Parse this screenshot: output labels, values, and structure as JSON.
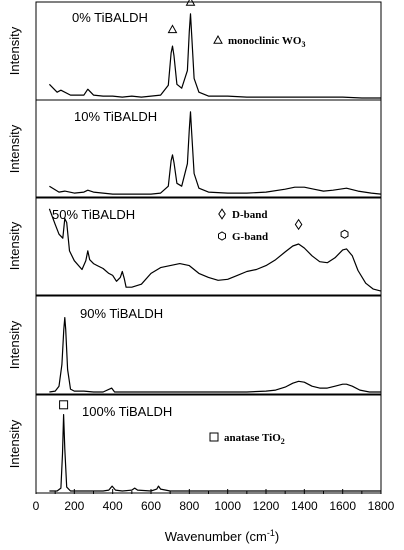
{
  "chart_data": {
    "type": "line",
    "xlabel": "Wavenumber (cm",
    "xlabel_sup": "-1",
    "xlabel_end": ")",
    "ylabel": "Intensity",
    "xlim": [
      0,
      1800
    ],
    "xticks": [
      0,
      200,
      400,
      600,
      800,
      1000,
      1200,
      1400,
      1600,
      1800
    ],
    "grid": false,
    "panels": [
      {
        "label": "0% TiBALDH",
        "annotations": [
          {
            "symbol": "triangle",
            "x": 712,
            "y": 0.72
          },
          {
            "symbol": "triangle",
            "x": 806,
            "y": 1.0
          }
        ],
        "legend": [
          {
            "symbol": "triangle",
            "text": "monoclinic WO",
            "sub": "3"
          }
        ],
        "series": [
          {
            "x": [
              70,
              110,
              130,
              180,
              250,
              270,
              300,
              350,
              400,
              450,
              500,
              550,
              600,
              650,
              690,
              705,
              712,
              720,
              735,
              760,
              790,
              800,
              806,
              812,
              825,
              850,
              900,
              1000,
              1100,
              1200,
              1300,
              1400,
              1500,
              1600,
              1700,
              1800
            ],
            "y": [
              0.16,
              0.08,
              0.1,
              0.05,
              0.05,
              0.11,
              0.05,
              0.04,
              0.04,
              0.03,
              0.04,
              0.03,
              0.04,
              0.05,
              0.15,
              0.48,
              0.55,
              0.45,
              0.16,
              0.12,
              0.3,
              0.7,
              0.88,
              0.68,
              0.22,
              0.08,
              0.04,
              0.04,
              0.03,
              0.03,
              0.03,
              0.03,
              0.03,
              0.03,
              0.02,
              0.02
            ]
          }
        ]
      },
      {
        "label": "10% TiBALDH",
        "annotations": [],
        "legend": [],
        "series": [
          {
            "x": [
              70,
              120,
              150,
              200,
              250,
              270,
              300,
              400,
              500,
              600,
              650,
              690,
              705,
              712,
              720,
              735,
              760,
              790,
              800,
              806,
              812,
              825,
              850,
              900,
              1000,
              1100,
              1200,
              1300,
              1350,
              1400,
              1450,
              1500,
              1550,
              1620,
              1680,
              1750,
              1800
            ],
            "y": [
              0.12,
              0.06,
              0.07,
              0.05,
              0.06,
              0.08,
              0.06,
              0.04,
              0.04,
              0.04,
              0.05,
              0.12,
              0.38,
              0.44,
              0.36,
              0.15,
              0.12,
              0.35,
              0.7,
              0.88,
              0.68,
              0.25,
              0.1,
              0.06,
              0.05,
              0.05,
              0.06,
              0.09,
              0.11,
              0.11,
              0.09,
              0.07,
              0.08,
              0.1,
              0.07,
              0.05,
              0.04
            ]
          }
        ]
      },
      {
        "label": "50% TiBALDH",
        "annotations": [
          {
            "symbol": "diamond",
            "x": 1370,
            "y": 0.72
          },
          {
            "symbol": "hexagon",
            "x": 1610,
            "y": 0.62
          }
        ],
        "legend": [
          {
            "symbol": "diamond",
            "text": "D-band",
            "sub": ""
          },
          {
            "symbol": "hexagon",
            "text": "G-band",
            "sub": ""
          }
        ],
        "series": [
          {
            "x": [
              70,
              100,
              120,
              140,
              150,
              160,
              175,
              200,
              240,
              260,
              270,
              280,
              300,
              320,
              350,
              380,
              400,
              420,
              440,
              450,
              460,
              470,
              500,
              550,
              600,
              650,
              700,
              750,
              800,
              850,
              900,
              950,
              1000,
              1050,
              1100,
              1150,
              1200,
              1250,
              1300,
              1340,
              1370,
              1400,
              1440,
              1480,
              1520,
              1560,
              1600,
              1620,
              1650,
              1680,
              1720,
              1760,
              1800
            ],
            "y": [
              0.88,
              0.72,
              0.62,
              0.58,
              0.78,
              0.74,
              0.45,
              0.35,
              0.26,
              0.35,
              0.45,
              0.36,
              0.32,
              0.3,
              0.27,
              0.22,
              0.2,
              0.14,
              0.18,
              0.24,
              0.17,
              0.08,
              0.08,
              0.11,
              0.22,
              0.28,
              0.3,
              0.32,
              0.3,
              0.22,
              0.18,
              0.15,
              0.16,
              0.2,
              0.24,
              0.26,
              0.3,
              0.36,
              0.44,
              0.5,
              0.52,
              0.48,
              0.4,
              0.34,
              0.33,
              0.38,
              0.46,
              0.47,
              0.4,
              0.25,
              0.12,
              0.06,
              0.04
            ]
          }
        ]
      },
      {
        "label": "90% TiBALDH",
        "annotations": [],
        "legend": [],
        "series": [
          {
            "x": [
              70,
              100,
              120,
              135,
              145,
              150,
              155,
              165,
              180,
              200,
              250,
              300,
              350,
              395,
              410,
              450,
              500,
              600,
              700,
              800,
              900,
              1000,
              1100,
              1200,
              1250,
              1300,
              1340,
              1370,
              1400,
              1440,
              1480,
              1520,
              1560,
              1600,
              1620,
              1650,
              1690,
              1740,
              1800
            ],
            "y": [
              0.02,
              0.03,
              0.08,
              0.3,
              0.66,
              0.78,
              0.66,
              0.25,
              0.05,
              0.03,
              0.03,
              0.02,
              0.02,
              0.06,
              0.02,
              0.02,
              0.02,
              0.02,
              0.02,
              0.02,
              0.02,
              0.02,
              0.02,
              0.03,
              0.04,
              0.07,
              0.11,
              0.13,
              0.12,
              0.08,
              0.06,
              0.06,
              0.08,
              0.1,
              0.1,
              0.08,
              0.04,
              0.02,
              0.02
            ]
          }
        ]
      },
      {
        "label": "100% TiBALDH",
        "annotations": [
          {
            "symbol": "square",
            "x": 144,
            "y": 0.9
          }
        ],
        "legend": [
          {
            "symbol": "square",
            "text": "anatase TiO",
            "sub": "2"
          }
        ],
        "series": [
          {
            "x": [
              70,
              110,
              130,
              138,
              144,
              150,
              160,
              180,
              250,
              350,
              380,
              397,
              415,
              450,
              500,
              515,
              530,
              600,
              630,
              639,
              650,
              700,
              800,
              1000,
              1200,
              1400,
              1600,
              1800
            ],
            "y": [
              0.02,
              0.02,
              0.05,
              0.4,
              0.8,
              0.45,
              0.06,
              0.02,
              0.02,
              0.02,
              0.03,
              0.07,
              0.03,
              0.02,
              0.03,
              0.05,
              0.03,
              0.02,
              0.04,
              0.07,
              0.04,
              0.02,
              0.02,
              0.02,
              0.02,
              0.02,
              0.02,
              0.02
            ]
          }
        ]
      }
    ]
  }
}
